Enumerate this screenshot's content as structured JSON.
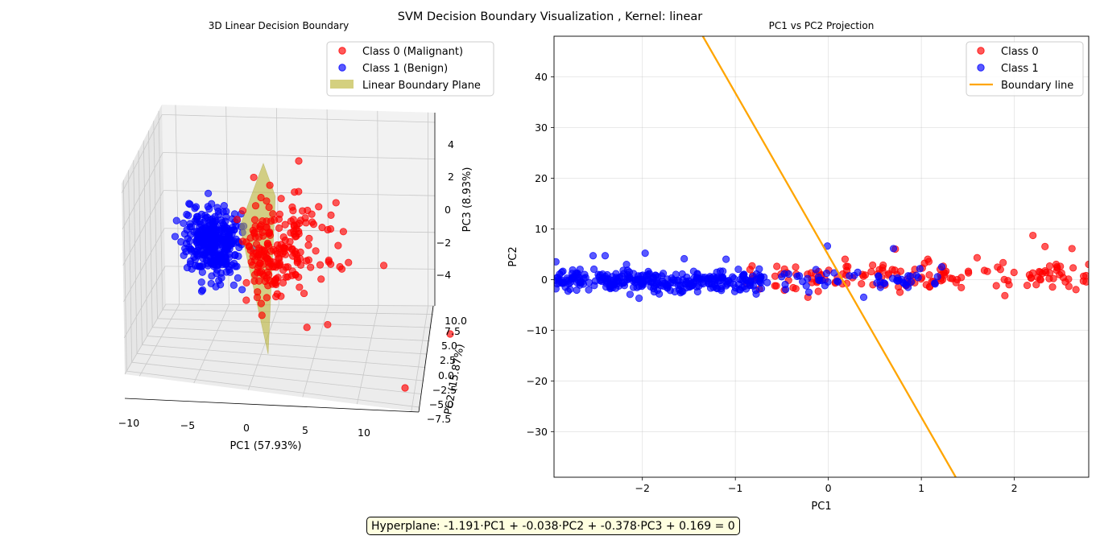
{
  "figure": {
    "suptitle": "SVM Decision Boundary Visualization  ,  Kernel: linear",
    "hyperplane_text": "Hyperplane: -1.191·PC1 + -0.038·PC2 + -0.378·PC3 + 0.169 = 0"
  },
  "colors": {
    "class0": "#ff0000",
    "class1": "#0000ff",
    "boundary_line": "#ffa500",
    "boundary_plane": "#b8b02a",
    "hyperplane_box_bg": "#ffffe0"
  },
  "chart_data": [
    {
      "type": "scatter",
      "projection": "3d",
      "title": "3D Linear Decision Boundary",
      "xlabel": "PC1 (57.93%)",
      "ylabel": "PC2 (15.87%)",
      "zlabel": "PC3 (8.93%)",
      "xticks": [
        "−10",
        "−5",
        "0",
        "5",
        "10"
      ],
      "yticks": [
        "−7.5",
        "−5.0",
        "−2.5",
        "0.0",
        "2.5",
        "5.0",
        "7.5",
        "10.0"
      ],
      "zticks": [
        "−4",
        "−2",
        "0",
        "2",
        "4"
      ],
      "xlim": [
        -10.5,
        14
      ],
      "ylim": [
        -7.5,
        11
      ],
      "zlim": [
        -5.5,
        5.5
      ],
      "legend_position": "top-right",
      "legend": [
        "Class 0 (Malignant)",
        "Class 1 (Benign)",
        "Linear Boundary Plane"
      ],
      "series": [
        {
          "name": "Class 0 (Malignant)",
          "color": "#ff0000",
          "n": 212,
          "pc1_mean": 4.0,
          "pc1_sd": 3.0,
          "pc2_mean": 1.5,
          "pc2_sd": 2.5,
          "pc3_mean": -2.2,
          "pc3_sd": 1.6
        },
        {
          "name": "Class 1 (Benign)",
          "color": "#0000ff",
          "n": 357,
          "pc1_mean": -2.1,
          "pc1_sd": 1.1,
          "pc2_mean": -1.0,
          "pc2_sd": 1.6,
          "pc3_mean": -2.2,
          "pc3_sd": 1.0
        }
      ],
      "outliers": [
        {
          "pc1": 12.5,
          "pc2": -6.8,
          "pc3": -0.5
        },
        {
          "pc1": 13.0,
          "pc2": 10.5,
          "pc3": -2.0
        },
        {
          "pc1": 11.0,
          "pc2": 2.0,
          "pc3": 4.0
        }
      ],
      "plane": {
        "name": "Linear Boundary Plane",
        "equation": "-1.191·PC1 + -0.038·PC2 + -0.378·PC3 + 0.169 = 0"
      }
    },
    {
      "type": "scatter",
      "title": "PC1 vs PC2 Projection",
      "xlabel": "PC1",
      "ylabel": "PC2",
      "xlim": [
        -2.95,
        2.8
      ],
      "ylim": [
        -39,
        48
      ],
      "xticks": [
        -2,
        -1,
        0,
        1,
        2
      ],
      "yticks": [
        -30,
        -20,
        -10,
        0,
        10,
        20,
        30,
        40
      ],
      "xtick_labels": [
        "−2",
        "−1",
        "0",
        "1",
        "2"
      ],
      "ytick_labels": [
        "−30",
        "−20",
        "−10",
        "0",
        "10",
        "20",
        "30",
        "40"
      ],
      "grid": true,
      "legend_position": "top-right",
      "legend": [
        "Class 0",
        "Class 1",
        "Boundary line"
      ],
      "series": [
        {
          "name": "Class 0",
          "color": "#ff0000",
          "n": 150,
          "x_range": [
            -0.9,
            2.8
          ],
          "y_mean": 0.5,
          "y_sd": 1.4,
          "points": [
            [
              2.2,
              8.7
            ],
            [
              2.33,
              6.5
            ],
            [
              2.62,
              6.1
            ],
            [
              0.72,
              6.0
            ],
            [
              1.6,
              4.3
            ],
            [
              0.18,
              4.0
            ],
            [
              -0.82,
              2.7
            ],
            [
              -0.22,
              -3.5
            ],
            [
              0.77,
              -2.5
            ],
            [
              -0.35,
              -1.8
            ],
            [
              2.8,
              3.0
            ],
            [
              2.45,
              3.0
            ]
          ]
        },
        {
          "name": "Class 1",
          "color": "#0000ff",
          "n": 357,
          "x_range": [
            -2.95,
            1.25
          ],
          "y_mean": -0.3,
          "y_sd": 1.0,
          "points": [
            [
              -1.97,
              5.2
            ],
            [
              -0.01,
              6.6
            ],
            [
              0.7,
              6.1
            ],
            [
              -2.4,
              4.7
            ],
            [
              -2.53,
              4.7
            ],
            [
              -1.55,
              4.1
            ],
            [
              -1.1,
              4.0
            ],
            [
              -2.93,
              3.5
            ],
            [
              0.38,
              -3.5
            ],
            [
              1.22,
              2.5
            ]
          ]
        }
      ],
      "boundary_line": {
        "name": "Boundary line",
        "color": "#ffa500",
        "x": [
          -1.35,
          1.37
        ],
        "y": [
          48,
          -39
        ]
      }
    }
  ]
}
